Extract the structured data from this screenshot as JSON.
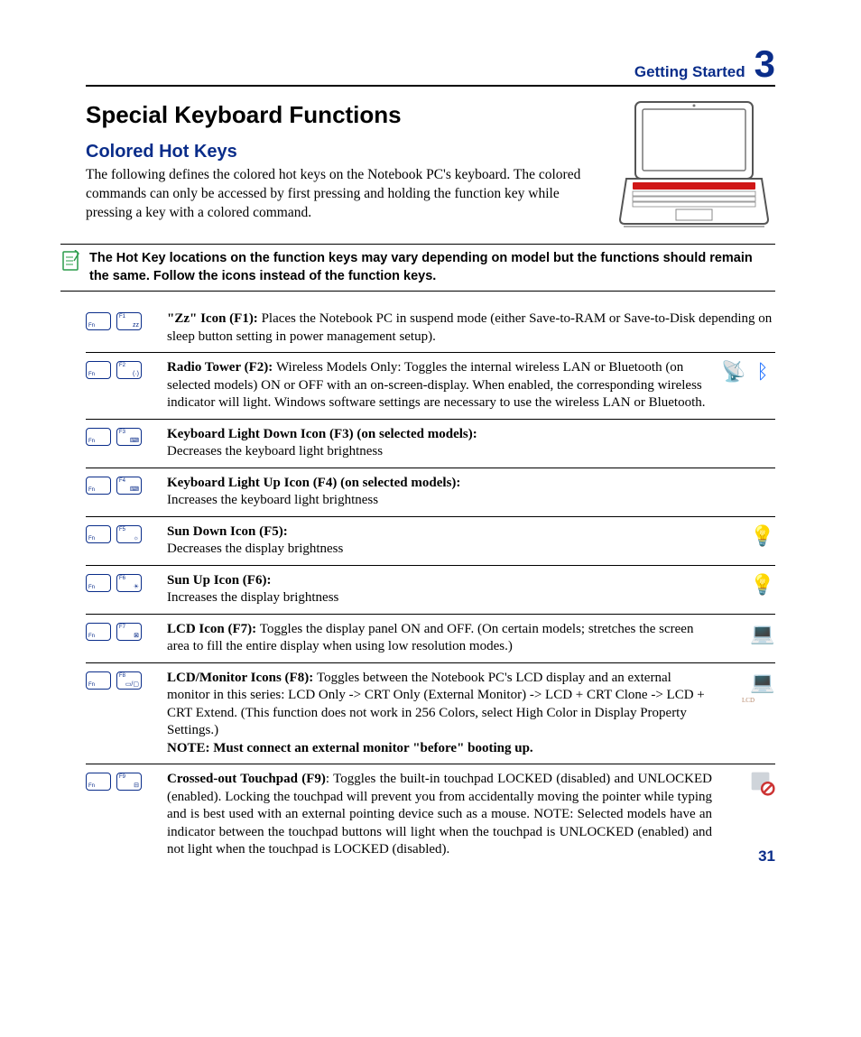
{
  "header": {
    "section": "Getting Started",
    "chapter": "3"
  },
  "title": "Special Keyboard Functions",
  "subtitle": "Colored Hot Keys",
  "intro": "The following defines the colored hot keys on the Notebook PC's keyboard. The colored commands can only be accessed by first pressing and holding the function key while pressing a key with a colored command.",
  "note": "The Hot Key locations on the function keys may vary depending on model but the functions should remain the same. Follow the icons instead of the function keys.",
  "rows": [
    {
      "fkey": "F1",
      "glyph": "zᴢ",
      "bold": "\"Zz\" Icon (F1): ",
      "text": "Places the Notebook PC in suspend mode (either Save-to-RAM or Save-to-Disk depending on sleep button setting in power management setup).",
      "icons": []
    },
    {
      "fkey": "F2",
      "glyph": "(·)",
      "bold": "Radio Tower (F2): ",
      "text": "Wireless Models Only: Toggles the internal wireless LAN or Bluetooth (on selected models) ON or OFF with an on-screen-display. When enabled, the corresponding wireless indicator will light. Windows software settings are necessary to use the wireless LAN or Bluetooth.",
      "icons": [
        {
          "char": "📡",
          "color": "#1e5fb3",
          "label": ""
        },
        {
          "char": "ᛒ",
          "color": "#1e6fff",
          "label": ""
        }
      ]
    },
    {
      "fkey": "F3",
      "glyph": "⌨",
      "bold": "Keyboard Light Down Icon (F3) (on selected models):",
      "text": " Decreases the keyboard light brightness",
      "br_after_bold": true,
      "icons": []
    },
    {
      "fkey": "F4",
      "glyph": "⌨",
      "bold": "Keyboard Light Up Icon (F4) (on selected models):",
      "text": " Increases the keyboard light brightness",
      "br_after_bold": true,
      "icons": []
    },
    {
      "fkey": "F5",
      "glyph": "☼",
      "bold": "Sun Down Icon (F5):",
      "text": " Decreases the display brightness",
      "br_after_bold": true,
      "icons": [
        {
          "char": "💡",
          "color": "#7aa0c4",
          "label": ""
        }
      ]
    },
    {
      "fkey": "F6",
      "glyph": "☀",
      "bold": "Sun Up Icon (F6):",
      "text": " Increases the display brightness",
      "br_after_bold": true,
      "icons": [
        {
          "char": "💡",
          "color": "#7aa0c4",
          "label": ""
        }
      ]
    },
    {
      "fkey": "F7",
      "glyph": "⊠",
      "bold": "LCD Icon (F7): ",
      "text": "Toggles the display panel ON and OFF. (On certain models; stretches the screen area to fill the entire display when using low resolution modes.)",
      "icons": [
        {
          "char": "💻",
          "color": "#2a3a5a",
          "label": ""
        }
      ]
    },
    {
      "fkey": "F8",
      "glyph": "▭/▢",
      "bold": "LCD/Monitor Icons (F8): ",
      "text": "Toggles between the Notebook PC's LCD display and an external monitor in this series: LCD Only -> CRT Only (External Monitor) -> LCD + CRT Clone -> LCD + CRT Extend. (This function does not work in 256 Colors, select High Color in Display Property Settings.) ",
      "note": "NOTE: Must connect an external monitor \"before\" booting up.",
      "icons": [
        {
          "char": "💻",
          "color": "#2a3a5a",
          "label": "LCD"
        }
      ]
    },
    {
      "fkey": "F9",
      "glyph": "⊟",
      "bold": "Crossed-out Touchpad (F9)",
      "text": ": Toggles the built-in touchpad LOCKED (disabled) and UNLOCKED (enabled). Locking the touchpad will prevent you from accidentally moving the pointer while typing and is best used with an external pointing device such as a mouse. NOTE: Selected models have an indicator between the touchpad buttons will light when the touchpad is UNLOCKED (enabled) and not light when the touchpad is LOCKED (disabled).",
      "justify": true,
      "icons": [
        {
          "char": "🚫",
          "color": "#cc3333",
          "label": "",
          "bg": true
        }
      ]
    }
  ],
  "page_number": "31",
  "colors": {
    "accent": "#0a2d8a",
    "note_icon": "#2a9c4a"
  }
}
